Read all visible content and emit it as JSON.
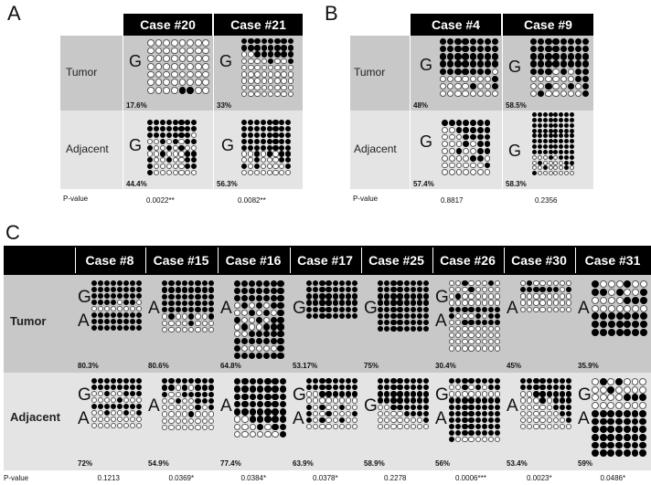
{
  "panels": [
    {
      "id": "A",
      "letter": "A",
      "cases": [
        "Case #20",
        "Case #21"
      ],
      "rows": [
        {
          "label": "Tumor",
          "cells": [
            {
              "letter": "G",
              "pct": "17.6%",
              "cols": 8,
              "rows": 7,
              "pattern": [
                "uuuuuuuu",
                "uuuuuuuu",
                "uuuuuuuu",
                "uuuuuuuu",
                "uuuuuuuu",
                "uuuuuuuu",
                "uuuummuu"
              ]
            },
            {
              "letter": "G",
              "pct": "33%",
              "cols": 8,
              "rows": 9,
              "pattern": [
                "mmmmmmmm",
                "mmmmmmmm",
                "uummmmmm",
                "uuuumuum",
                "uuuuuuuu",
                "uuuuuuuu",
                "uuuuuuuu",
                "uuuuuuuu",
                "uuuuuuuu"
              ]
            }
          ]
        },
        {
          "label": "Adjacent",
          "cells": [
            {
              "letter": "G",
              "pct": "44.4%",
              "cols": 8,
              "rows": 9,
              "pattern": [
                "mmmmmmmm",
                "mmmmmmmm",
                "mmmmmmmu",
                "uumumumm",
                "muumumuu",
                "uumuuumm",
                "muumuumm",
                "muuuuumm",
                "muuuuuuu"
              ]
            },
            {
              "letter": "G",
              "pct": "56.3%",
              "cols": 8,
              "rows": 9,
              "pattern": [
                "mmmmmmmm",
                "mmmmmmmm",
                "mmmmmmmm",
                "mmmmmmmm",
                "mmmmmmmm",
                "uumumumm",
                "uumuuumm",
                "mumuuuum",
                "uuuuuuuu"
              ]
            }
          ]
        }
      ],
      "pvalue_label": "P-value",
      "pvalues": [
        "0.0022**",
        "0.0082**"
      ]
    },
    {
      "id": "B",
      "letter": "B",
      "cases": [
        "Case #4",
        "Case #9"
      ],
      "rows": [
        {
          "label": "Tumor",
          "cells": [
            {
              "letter": "G",
              "pct": "48%",
              "cols": 8,
              "rows": 8,
              "pattern": [
                "mmmmmmmm",
                "mmmmmmmm",
                "mmmmmmmm",
                "mmmmmmmm",
                "mmmmmmmu",
                "uuuuuuum",
                "uuuumuum",
                "uuuuuuuu"
              ]
            },
            {
              "letter": "G",
              "pct": "58.5%",
              "cols": 8,
              "rows": 8,
              "pattern": [
                "mmmmmmmm",
                "mmmmmmmm",
                "mmmmmmmm",
                "mmmmmmmm",
                "mmmumumm",
                "uuuuuumm",
                "uumuumum",
                "umuuuuum"
              ]
            }
          ]
        },
        {
          "label": "Adjacent",
          "cells": [
            {
              "letter": "G",
              "pct": "57.4%",
              "cols": 7,
              "rows": 8,
              "pattern": [
                "mmmmmmm",
                "uummmmm",
                "uuummmm",
                "uuumumm",
                "uumuumm",
                "uuuummu",
                "uuuuuum",
                "uuuuuuu"
              ]
            },
            {
              "letter": "G",
              "pct": "58.3%",
              "cols": 8,
              "rows": 12,
              "pattern": [
                "mmmmmmmm",
                "mmmmmmmm",
                "mmmmmmmm",
                "mmmmmmmm",
                "mmmmmmmm",
                "mmmmmmmm",
                "mmmmmmmm",
                "mmmmmmmm",
                "uuumummm",
                "umuuuumm",
                "uumuuumu",
                "muuuuuuu"
              ]
            }
          ]
        }
      ],
      "pvalue_label": "P-value",
      "pvalues": [
        "0.8817",
        "0.2356"
      ]
    },
    {
      "id": "C",
      "letter": "C",
      "cases": [
        "Case #8",
        "Case #15",
        "Case #16",
        "Case #17",
        "Case #25",
        "Case #26",
        "Case #30",
        "Case #31"
      ],
      "rows": [
        {
          "label": "Tumor",
          "cells": [
            {
              "letters": [
                "G",
                "A"
              ],
              "pct": "80.3%",
              "cols": 8,
              "rows": 8,
              "pattern": [
                "mmmmmmmm",
                "mmmmmmmm",
                "mmmmmmmm",
                "mmmmumm",
                "uuuuuuuu",
                "mmmmmmmm",
                "mmmmmmmm",
                "mmmmmmmm"
              ]
            },
            {
              "letters": [
                "A"
              ],
              "pct": "80.6%",
              "cols": 8,
              "rows": 8,
              "pattern": [
                "mmmmmmmm",
                "mmmmmmmm",
                "mmmmmmmm",
                "mmmmmmmm",
                "mmmmmmmm",
                "umuumuum",
                "uuuumuuu",
                "uuuuuuuu"
              ]
            },
            {
              "letters": [
                "A"
              ],
              "pct": "64.8%",
              "cols": 7,
              "rows": 11,
              "pattern": [
                "mmmmmmm",
                "mmmmmmm",
                "mmmmmmm",
                "umumumm",
                "uumumum",
                "muumumm",
                "umuummm",
                "uummmmm",
                "mmmmmmm",
                "muuuuum",
                "mmmmmmm"
              ]
            },
            {
              "letters": [
                "G"
              ],
              "pct": "53.17%",
              "cols": 8,
              "rows": 6,
              "pattern": [
                "mmmmmmmm",
                "mmmmmmmm",
                "mmmmmmmm",
                "mmmmmmmm",
                "mmmmmmmm",
                "mmmmmmmm"
              ]
            },
            {
              "letters": [
                "G"
              ],
              "pct": "75%",
              "cols": 8,
              "rows": 8,
              "pattern": [
                "mmmmmmmm",
                "mmmmmmmm",
                "mmmmmmmm",
                "mmmmmmmm",
                "mmmmmmmm",
                "mmmmmmmm",
                "mmmmmmmm",
                "mmmmmmmm"
              ]
            },
            {
              "letters": [
                "G",
                "A"
              ],
              "pct": "30.4%",
              "cols": 8,
              "rows": 11,
              "pattern": [
                "uumuuumu",
                "uuumuuuu",
                "umuuuuuu",
                "uuuuuuuu",
                "mmmmmmmm",
                "muuumumm",
                "uummmmmm",
                "uuuuuuuu",
                "uuuuuuuu",
                "uuuuuuuu",
                "uuuuuuuu"
              ]
            },
            {
              "letters": [
                "A"
              ],
              "pct": "45%",
              "cols": 8,
              "rows": 5,
              "pattern": [
                "umuuuuuu",
                "mmmmmmum",
                "uuuuuuuu",
                "uuuuuuuu",
                "uuuuuuuu"
              ]
            },
            {
              "letters": [
                "A"
              ],
              "pct": "35.9%",
              "cols": 7,
              "rows": 7,
              "pattern": [
                "muuumuu",
                "mmumuum",
                "uuuummm",
                "uuuuuuu",
                "mmmmmmm",
                "mmmmmmm",
                "mmmmmmm"
              ]
            }
          ]
        },
        {
          "label": "Adjacent",
          "cells": [
            {
              "letters": [
                "G",
                "A"
              ],
              "pct": "72%",
              "cols": 8,
              "rows": 8,
              "pattern": [
                "mmmmmmmm",
                "mmmmmmmm",
                "uumuummm",
                "uuuumuuu",
                "mmmmmmmm",
                "uumuumum",
                "uuuuuuuu",
                "uuuuuuuu"
              ]
            },
            {
              "letters": [
                "A"
              ],
              "pct": "54.9%",
              "cols": 8,
              "rows": 8,
              "pattern": [
                "mmmmmmmm",
                "mmumummm",
                "muummmmm",
                "uumuummm",
                "uuuuumum",
                "uuuumuuu",
                "uuuuuuuu",
                "uuuuuuuu"
              ]
            },
            {
              "letters": [
                "A"
              ],
              "pct": "77.4%",
              "cols": 7,
              "rows": 8,
              "pattern": [
                "mmmmmmm",
                "mmmmmmm",
                "mmmmmmm",
                "mmmmmmm",
                "mmmmmmm",
                "uummmmm",
                "uuumumm",
                "uuuuuum"
              ]
            },
            {
              "letters": [
                "G",
                "A"
              ],
              "pct": "63.9%",
              "cols": 8,
              "rows": 8,
              "pattern": [
                "mmmmmmmm",
                "mmmmmmmm",
                "uummmmmm",
                "uuuuuuuu",
                "mumuumuu",
                "muumuuum",
                "mumuumuu",
                "uuuuuuuu"
              ]
            },
            {
              "letters": [
                "G"
              ],
              "pct": "58.9%",
              "cols": 8,
              "rows": 8,
              "pattern": [
                "mmmmmmmm",
                "mmmmmmmm",
                "mmmmmmmm",
                "mmmmmmmm",
                "uummmmmm",
                "uuuummmm",
                "uuuuuuum",
                "uuuuuuuu"
              ]
            },
            {
              "letters": [
                "G",
                "A"
              ],
              "pct": "56%",
              "cols": 8,
              "rows": 10,
              "pattern": [
                "mmmmmmmm",
                "uumumumm",
                "uuuuuuuu",
                "mmmmmmmm",
                "mmmmmmmm",
                "mmmmmmmm",
                "mmmmmmmm",
                "mmmmmmmm",
                "mmmmmmmm",
                "muuuuuuu"
              ]
            },
            {
              "letters": [
                "A"
              ],
              "pct": "53.4%",
              "cols": 8,
              "rows": 8,
              "pattern": [
                "mmmmmmmm",
                "mmmmmmmm",
                "uummmmmm",
                "uuumummm",
                "uuuuummm",
                "uuuuuumm",
                "uuuuuuum",
                "uuuuuuuu"
              ]
            },
            {
              "letters": [
                "G",
                "A"
              ],
              "pct": "59%",
              "cols": 7,
              "rows": 10,
              "pattern": [
                "umumuuu",
                "uumuuuu",
                "uuuummm",
                "uuuuuuu",
                "mmmmmmm",
                "mmmmmmm",
                "mmmmmmm",
                "mmmmmmm",
                "mmmmmmm",
                "mmmmmmm"
              ]
            }
          ]
        }
      ],
      "pvalue_label": "P-value",
      "pvalues": [
        "0.1213",
        "0.0369*",
        "0.0384*",
        "0.0378*",
        "0.2278",
        "0.0006***",
        "0.0023*",
        "0.0486*"
      ]
    }
  ]
}
